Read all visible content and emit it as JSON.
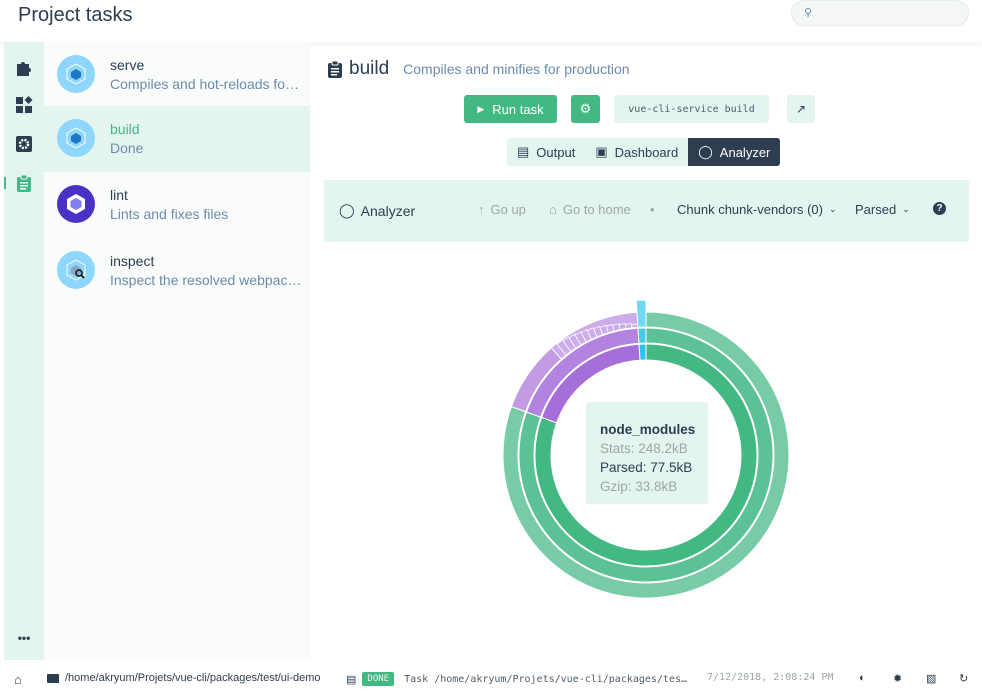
{
  "header": {
    "title": "Project tasks",
    "search_placeholder": ""
  },
  "nav": {
    "items": [
      {
        "icon": "puzzle-icon"
      },
      {
        "icon": "dashboard-icon"
      },
      {
        "icon": "settings-icon"
      },
      {
        "icon": "clipboard-icon",
        "active": true
      }
    ],
    "more": "•••"
  },
  "tasks": [
    {
      "name": "serve",
      "description": "Compiles and hot-reloads for development"
    },
    {
      "name": "build",
      "description": "Done",
      "selected": true
    },
    {
      "name": "lint",
      "description": "Lints and fixes files"
    },
    {
      "name": "inspect",
      "description": "Inspect the resolved webpack config"
    }
  ],
  "main": {
    "title": "build",
    "description": "Compiles and minifies for production",
    "run_label": "Run task",
    "command": "vue-cli-service build",
    "tabs": [
      {
        "label": "Output"
      },
      {
        "label": "Dashboard"
      },
      {
        "label": "Analyzer",
        "active": true
      }
    ]
  },
  "analyzer": {
    "title": "Analyzer",
    "go_up": "Go up",
    "go_home": "Go to home",
    "separator": "•",
    "chunk": "Chunk chunk-vendors (0)",
    "mode": "Parsed",
    "tooltip": {
      "name": "node_modules",
      "stats": "Stats: 248.2kB",
      "parsed": "Parsed: 77.5kB",
      "gzip": "Gzip: 33.8kB"
    },
    "rings": [
      {
        "segments": [
          {
            "fraction": 0.805,
            "color": "#42b983"
          },
          {
            "fraction": 0.185,
            "color": "#a56ed8"
          },
          {
            "fraction": 0.01,
            "color": "#2bc3e8"
          }
        ]
      },
      {
        "segments": [
          {
            "fraction": 0.805,
            "color": "#5cc295"
          },
          {
            "fraction": 0.185,
            "color": "#b283df"
          },
          {
            "fraction": 0.01,
            "color": "#44cbea"
          }
        ]
      },
      {
        "segments": [
          {
            "fraction": 0.805,
            "color": "#77cba6"
          },
          {
            "fraction": 0.08,
            "color": "#c29be4"
          },
          {
            "fraction": 0.105,
            "color": "#ccacea",
            "striped": true
          },
          {
            "fraction": 0.01,
            "color": "#70d8f0"
          }
        ]
      }
    ]
  },
  "status": {
    "cwd": "/home/akryum/Projets/vue-cli/packages/test/ui-demo",
    "badge": "DONE",
    "log": "Task /home/akryum/Projets/vue-cli/packages/tes…",
    "time": "7/12/2018, 2:08:24 PM"
  },
  "colors": {
    "accent": "#42b983",
    "dark": "#2c3e50",
    "light": "#e4f5ef"
  }
}
